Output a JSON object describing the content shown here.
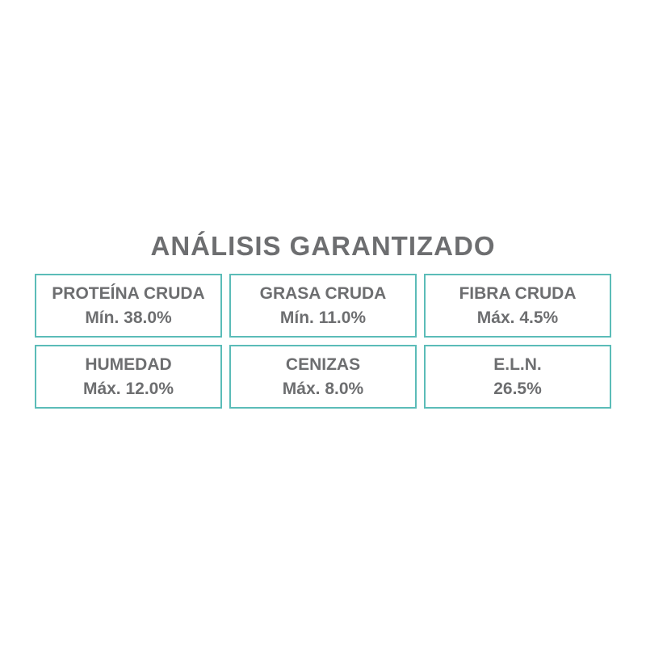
{
  "title": "ANÁLISIS GARANTIZADO",
  "colors": {
    "text": "#6d6e70",
    "border": "#5bbcb8"
  },
  "items": [
    {
      "label": "PROTEÍNA CRUDA",
      "value": "Mín. 38.0%"
    },
    {
      "label": "GRASA CRUDA",
      "value": "Mín. 11.0%"
    },
    {
      "label": "FIBRA CRUDA",
      "value": "Máx. 4.5%"
    },
    {
      "label": "HUMEDAD",
      "value": "Máx. 12.0%"
    },
    {
      "label": "CENIZAS",
      "value": "Máx. 8.0%"
    },
    {
      "label": "E.L.N.",
      "value": "26.5%"
    }
  ]
}
